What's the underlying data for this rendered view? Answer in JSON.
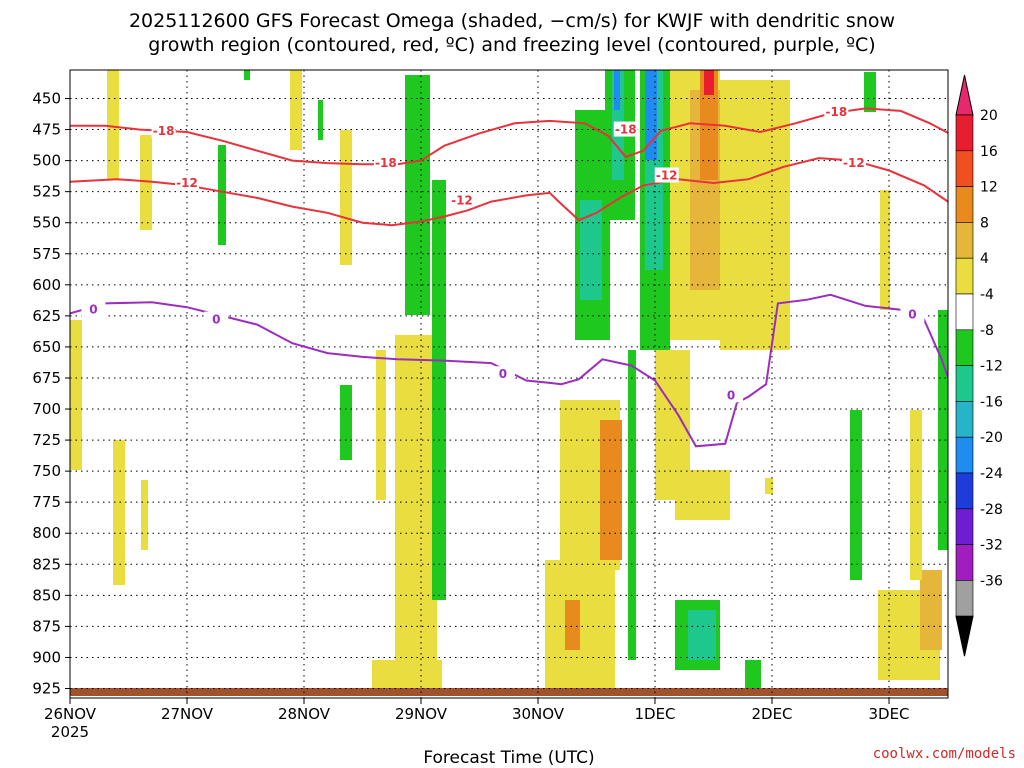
{
  "chart_data": {
    "type": "heatmap",
    "title_lines": [
      "2025112600 GFS Forecast Omega (shaded, −cm/s) for KWJF with dendritic snow",
      "growth region (contoured, red, ºC) and freezing level (contoured, purple, ºC)"
    ],
    "xlabel": "Forecast Time (UTC)",
    "credit": "coolwx.com/models",
    "x_ticks": [
      {
        "label": "26NOV",
        "sub": "2025",
        "day": 0
      },
      {
        "label": "27NOV",
        "day": 1
      },
      {
        "label": "28NOV",
        "day": 2
      },
      {
        "label": "29NOV",
        "day": 3
      },
      {
        "label": "30NOV",
        "day": 4
      },
      {
        "label": "1DEC",
        "day": 5
      },
      {
        "label": "2DEC",
        "day": 6
      },
      {
        "label": "3DEC",
        "day": 7
      }
    ],
    "x_range_days": [
      0,
      7.65
    ],
    "y_pressure_levels": [
      450,
      475,
      500,
      525,
      550,
      575,
      600,
      625,
      650,
      675,
      700,
      725,
      750,
      775,
      800,
      825,
      850,
      875,
      900,
      925
    ],
    "y_range": [
      425,
      935
    ],
    "colorbar": {
      "ticks": [
        "20",
        "16",
        "12",
        "8",
        "4",
        "-4",
        "-8",
        "-12",
        "-16",
        "-20",
        "-24",
        "-28",
        "-32",
        "-36"
      ],
      "colors": [
        "#e81e2e",
        "#f04f20",
        "#e88a1e",
        "#e6b63a",
        "#e9dd40",
        "#ffffff",
        "#1ec81e",
        "#1ec88c",
        "#28b4c8",
        "#1e8cf0",
        "#1e3cdc",
        "#6e1ed2",
        "#a01ec0",
        "#a0a0a0"
      ],
      "top_arrow_color": "#e8286e",
      "bottom_arrow_color": "#000000"
    },
    "contours": [
      {
        "label": "-18",
        "color": "#e8323c",
        "points": [
          [
            0,
            472
          ],
          [
            0.3,
            472
          ],
          [
            0.6,
            475
          ],
          [
            1.0,
            477
          ],
          [
            1.3,
            484
          ],
          [
            1.6,
            492
          ],
          [
            1.9,
            500
          ],
          [
            2.2,
            502
          ],
          [
            2.5,
            503
          ],
          [
            2.8,
            503
          ],
          [
            3.0,
            500
          ],
          [
            3.2,
            488
          ],
          [
            3.5,
            478
          ],
          [
            3.8,
            470
          ],
          [
            4.1,
            468
          ],
          [
            4.4,
            470
          ],
          [
            4.6,
            480
          ],
          [
            4.75,
            497
          ],
          [
            4.9,
            492
          ],
          [
            5.05,
            476
          ],
          [
            5.3,
            470
          ],
          [
            5.6,
            472
          ],
          [
            5.9,
            477
          ],
          [
            6.2,
            470
          ],
          [
            6.5,
            462
          ],
          [
            6.8,
            458
          ],
          [
            7.1,
            460
          ],
          [
            7.35,
            470
          ],
          [
            7.55,
            480
          ],
          [
            7.65,
            484
          ]
        ],
        "label_pos": [
          [
            0.8,
            476
          ],
          [
            2.7,
            502
          ],
          [
            4.75,
            475
          ],
          [
            6.55,
            461
          ]
        ]
      },
      {
        "label": "-12",
        "color": "#e8323c",
        "points": [
          [
            0,
            517
          ],
          [
            0.4,
            515
          ],
          [
            0.7,
            517
          ],
          [
            1.0,
            520
          ],
          [
            1.3,
            525
          ],
          [
            1.6,
            530
          ],
          [
            1.9,
            537
          ],
          [
            2.2,
            542
          ],
          [
            2.5,
            550
          ],
          [
            2.75,
            552
          ],
          [
            3.0,
            549
          ],
          [
            3.2,
            545
          ],
          [
            3.4,
            540
          ],
          [
            3.6,
            533
          ],
          [
            3.9,
            528
          ],
          [
            4.1,
            526
          ],
          [
            4.2,
            535
          ],
          [
            4.35,
            548
          ],
          [
            4.5,
            542
          ],
          [
            4.7,
            530
          ],
          [
            4.9,
            520
          ],
          [
            5.2,
            515
          ],
          [
            5.5,
            518
          ],
          [
            5.8,
            515
          ],
          [
            6.1,
            505
          ],
          [
            6.4,
            498
          ],
          [
            6.7,
            500
          ],
          [
            7.0,
            508
          ],
          [
            7.3,
            520
          ],
          [
            7.55,
            536
          ],
          [
            7.65,
            536
          ]
        ],
        "label_pos": [
          [
            1.0,
            518
          ],
          [
            3.35,
            532
          ],
          [
            5.1,
            512
          ],
          [
            6.7,
            502
          ]
        ]
      },
      {
        "label": "0",
        "color": "#9b2dbf",
        "points": [
          [
            0,
            623
          ],
          [
            0.3,
            615
          ],
          [
            0.7,
            614
          ],
          [
            1.0,
            618
          ],
          [
            1.3,
            625
          ],
          [
            1.6,
            632
          ],
          [
            1.9,
            647
          ],
          [
            2.2,
            655
          ],
          [
            2.5,
            658
          ],
          [
            2.8,
            660
          ],
          [
            3.2,
            661
          ],
          [
            3.6,
            663
          ],
          [
            3.9,
            677
          ],
          [
            4.1,
            679
          ],
          [
            4.2,
            680
          ],
          [
            4.35,
            676
          ],
          [
            4.55,
            660
          ],
          [
            4.8,
            665
          ],
          [
            5.0,
            677
          ],
          [
            5.2,
            705
          ],
          [
            5.35,
            730
          ],
          [
            5.6,
            728
          ],
          [
            5.7,
            695
          ],
          [
            5.8,
            690
          ],
          [
            5.95,
            680
          ],
          [
            6.05,
            615
          ],
          [
            6.3,
            612
          ],
          [
            6.5,
            608
          ],
          [
            6.8,
            617
          ],
          [
            7.1,
            620
          ],
          [
            7.3,
            628
          ],
          [
            7.45,
            660
          ],
          [
            7.6,
            700
          ],
          [
            7.65,
            705
          ]
        ],
        "label_pos": [
          [
            0.2,
            620
          ],
          [
            1.25,
            628
          ],
          [
            3.7,
            672
          ],
          [
            5.65,
            689
          ],
          [
            7.2,
            624
          ]
        ]
      }
    ]
  }
}
